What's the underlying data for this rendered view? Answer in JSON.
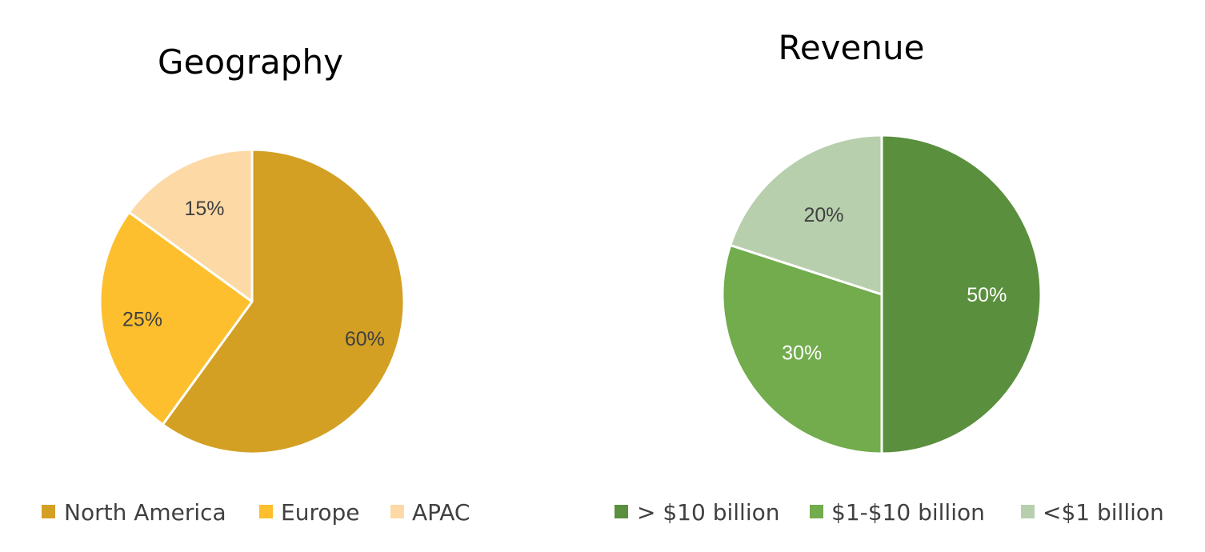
{
  "chart_data": [
    {
      "type": "pie",
      "title": "Geography",
      "categories": [
        "North America",
        "Europe",
        "APAC"
      ],
      "values": [
        60,
        25,
        15
      ],
      "labels": [
        "60%",
        "25%",
        "15%"
      ],
      "colors": [
        "#D3A024",
        "#FDBF2D",
        "#FCD9A5"
      ],
      "label_colors": [
        "#404040",
        "#404040",
        "#404040"
      ],
      "legend_position": "bottom",
      "start": "12 o'clock, clockwise"
    },
    {
      "type": "pie",
      "title": "Revenue",
      "categories": [
        "> $10 billion",
        "$1-$10 billion",
        "<$1 billion"
      ],
      "values": [
        50,
        30,
        20
      ],
      "labels": [
        "50%",
        "30%",
        "20%"
      ],
      "colors": [
        "#5A8F3D",
        "#72AC4D",
        "#B7CFAD"
      ],
      "label_colors": [
        "#FFFFFF",
        "#FFFFFF",
        "#404040"
      ],
      "legend_position": "bottom",
      "start": "12 o'clock, clockwise"
    }
  ]
}
